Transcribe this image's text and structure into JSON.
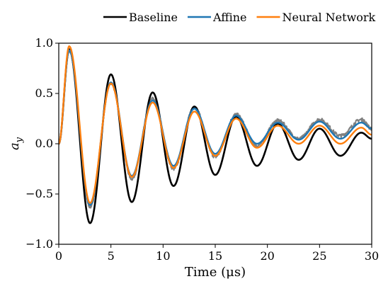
{
  "chart_data": {
    "type": "line",
    "title": "",
    "xlabel": "Time (μs)",
    "ylabel_main": "a",
    "ylabel_sub": "y",
    "xlim": [
      0,
      30
    ],
    "ylim": [
      -1.0,
      1.0
    ],
    "xticks": [
      0,
      5,
      10,
      15,
      20,
      25,
      30
    ],
    "xtick_labels": [
      "0",
      "5",
      "10",
      "15",
      "20",
      "25",
      "30"
    ],
    "yticks": [
      -1.0,
      -0.5,
      0.0,
      0.5,
      1.0
    ],
    "ytick_labels": [
      "−1.0",
      "−0.5",
      "0.0",
      "0.5",
      "1.0"
    ],
    "grid": false,
    "legend_placement": "top, outside the plot area",
    "legend": [
      {
        "label": "Baseline",
        "color": "#000000"
      },
      {
        "label": "Affine",
        "color": "#1f77b4"
      },
      {
        "label": "Neural Network",
        "color": "#ff7f0e"
      }
    ],
    "measured_color": "#808080",
    "peaks": {
      "measured": [
        [
          1.0,
          0.92
        ],
        [
          3.0,
          -0.63
        ],
        [
          5.0,
          0.6
        ],
        [
          7.0,
          -0.35
        ],
        [
          9.0,
          0.45
        ],
        [
          11.0,
          -0.25
        ],
        [
          13.0,
          0.36
        ],
        [
          15.0,
          -0.13
        ],
        [
          17.0,
          0.29
        ],
        [
          19.0,
          -0.02
        ],
        [
          21.0,
          0.23
        ],
        [
          23.0,
          0.05
        ],
        [
          25.0,
          0.24
        ],
        [
          27.0,
          0.08
        ],
        [
          29.0,
          0.24
        ],
        [
          30.0,
          0.15
        ]
      ],
      "baseline": [
        [
          1.0,
          0.94
        ],
        [
          3.0,
          -0.79
        ],
        [
          5.0,
          0.69
        ],
        [
          7.0,
          -0.58
        ],
        [
          9.0,
          0.51
        ],
        [
          11.0,
          -0.42
        ],
        [
          13.0,
          0.37
        ],
        [
          15.0,
          -0.31
        ],
        [
          17.0,
          0.27
        ],
        [
          19.0,
          -0.22
        ],
        [
          21.0,
          0.2
        ],
        [
          23.0,
          -0.16
        ],
        [
          25.0,
          0.15
        ],
        [
          27.0,
          -0.12
        ],
        [
          29.0,
          0.11
        ],
        [
          30.0,
          0.05
        ]
      ],
      "affine": [
        [
          1.0,
          0.93
        ],
        [
          3.0,
          -0.61
        ],
        [
          5.0,
          0.61
        ],
        [
          7.0,
          -0.32
        ],
        [
          9.0,
          0.43
        ],
        [
          11.0,
          -0.22
        ],
        [
          13.0,
          0.35
        ],
        [
          15.0,
          -0.1
        ],
        [
          17.0,
          0.28
        ],
        [
          19.0,
          0.0
        ],
        [
          21.0,
          0.21
        ],
        [
          23.0,
          0.04
        ],
        [
          25.0,
          0.22
        ],
        [
          27.0,
          0.05
        ],
        [
          29.0,
          0.21
        ],
        [
          30.0,
          0.15
        ]
      ],
      "neural_network": [
        [
          1.0,
          0.97
        ],
        [
          3.0,
          -0.59
        ],
        [
          5.0,
          0.6
        ],
        [
          7.0,
          -0.33
        ],
        [
          9.0,
          0.41
        ],
        [
          11.0,
          -0.24
        ],
        [
          13.0,
          0.32
        ],
        [
          15.0,
          -0.12
        ],
        [
          17.0,
          0.25
        ],
        [
          19.0,
          -0.04
        ],
        [
          21.0,
          0.18
        ],
        [
          23.0,
          0.0
        ],
        [
          25.0,
          0.18
        ],
        [
          27.0,
          0.0
        ],
        [
          29.0,
          0.16
        ],
        [
          30.0,
          0.09
        ]
      ]
    },
    "series": [
      {
        "key": "measured",
        "name": "",
        "color": "#808080",
        "width": 2.0,
        "noise": 0.035
      },
      {
        "key": "baseline",
        "name": "Baseline",
        "color": "#000000",
        "width": 2.6,
        "noise": 0
      },
      {
        "key": "affine",
        "name": "Affine",
        "color": "#1f77b4",
        "width": 2.4,
        "noise": 0
      },
      {
        "key": "neural_network",
        "name": "Neural Network",
        "color": "#ff7f0e",
        "width": 2.4,
        "noise": 0
      }
    ]
  }
}
